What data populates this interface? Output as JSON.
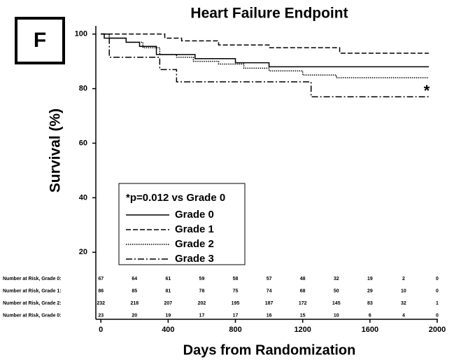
{
  "chart_data": {
    "type": "step",
    "panel_label": "F",
    "title": "Heart Failure Endpoint",
    "x_label": "Days from Randomization",
    "y_label": "Survival (%)",
    "xlim": [
      -30,
      2000
    ],
    "ylim": [
      17,
      103
    ],
    "xticks": [
      0,
      400,
      800,
      1200,
      1600,
      2000
    ],
    "yticks": [
      20,
      40,
      60,
      80,
      100
    ],
    "legend_title": "*p=0.012 vs Grade 0",
    "annotation": "*",
    "series": [
      {
        "name": "Grade 0",
        "color": "#000000",
        "style": "solid",
        "x": [
          0,
          20,
          150,
          230,
          330,
          560,
          800,
          1000,
          1950
        ],
        "values": [
          100,
          98.5,
          97,
          95.5,
          92.5,
          91,
          89.5,
          88,
          88
        ]
      },
      {
        "name": "Grade 1",
        "color": "#000000",
        "style": "dashed",
        "x": [
          0,
          380,
          480,
          700,
          1000,
          1420,
          1950
        ],
        "values": [
          100,
          98.5,
          97.5,
          96,
          95,
          93,
          93
        ]
      },
      {
        "name": "Grade 2",
        "color": "#000000",
        "style": "dotted",
        "x": [
          0,
          50,
          150,
          250,
          350,
          450,
          550,
          700,
          850,
          1000,
          1200,
          1400,
          1950
        ],
        "values": [
          100,
          98.5,
          97,
          95,
          92.5,
          91.5,
          90,
          89,
          87.5,
          86.5,
          85,
          84,
          84
        ]
      },
      {
        "name": "Grade 3",
        "color": "#000000",
        "style": "dashdot",
        "x": [
          0,
          50,
          350,
          450,
          1250,
          1950
        ],
        "values": [
          100,
          91.5,
          87,
          82.5,
          77,
          77
        ]
      }
    ],
    "risk_table": [
      {
        "label": "Number at Risk, Grade 0:",
        "values": [
          67,
          64,
          61,
          59,
          58,
          57,
          48,
          32,
          19,
          2,
          0
        ]
      },
      {
        "label": "Number at Risk, Grade 1:",
        "values": [
          86,
          85,
          81,
          78,
          75,
          74,
          68,
          50,
          29,
          10,
          0
        ]
      },
      {
        "label": "Number at Risk, Grade 2:",
        "values": [
          232,
          218,
          207,
          202,
          195,
          187,
          172,
          145,
          83,
          32,
          1
        ]
      },
      {
        "label": "Number at Risk, Grade 0:",
        "values": [
          23,
          20,
          19,
          17,
          17,
          16,
          15,
          10,
          6,
          4,
          0
        ]
      }
    ]
  }
}
